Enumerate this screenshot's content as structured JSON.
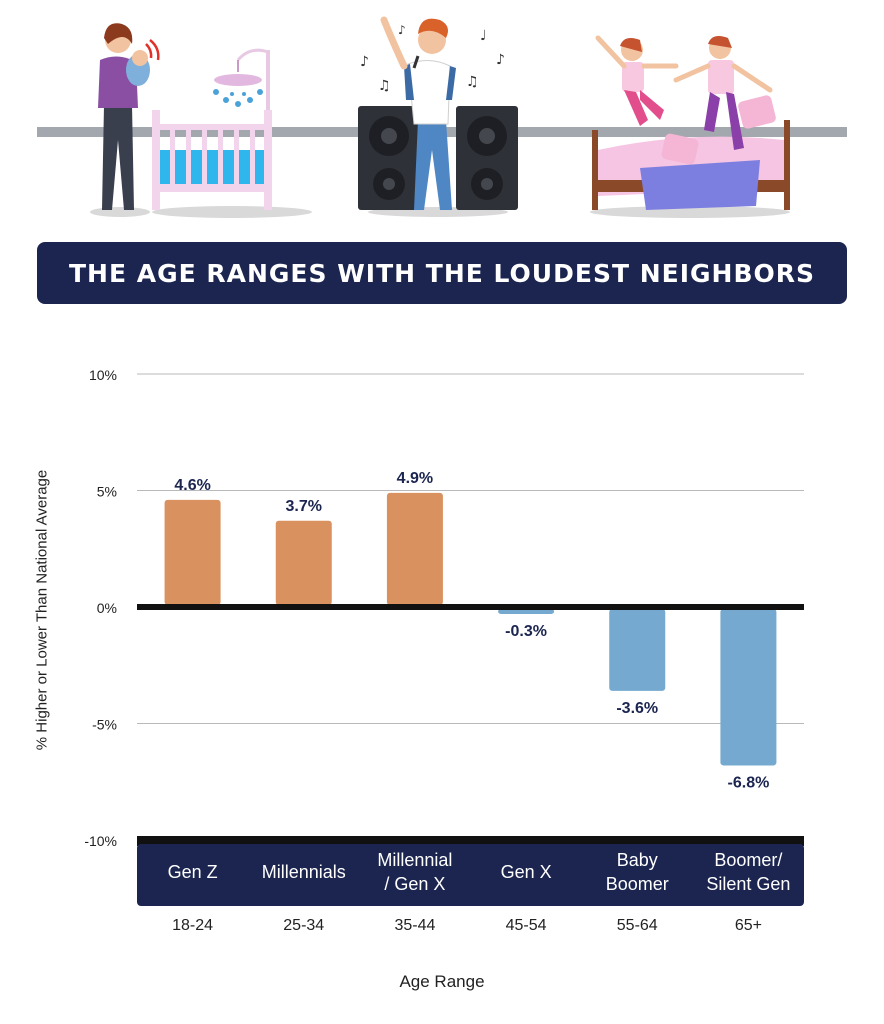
{
  "title": "THE AGE RANGES WITH THE LOUDEST NEIGHBORS",
  "colors": {
    "navy": "#1b2550",
    "positive_bar": "#d99160",
    "negative_bar": "#75a9cf",
    "value_label": "#1b2550"
  },
  "illustration_icons": [
    "mother-with-crying-baby-icon",
    "crib-icon",
    "singer-with-speakers-icon",
    "kids-jumping-on-bed-icon"
  ],
  "chart_data": {
    "type": "bar",
    "title": "THE AGE RANGES WITH THE LOUDEST NEIGHBORS",
    "ylabel": "% Higher or Lower Than National Average",
    "xlabel": "Age Range",
    "ylim": [
      -10,
      10
    ],
    "yticks": [
      10,
      5,
      0,
      -5,
      -10
    ],
    "ytick_labels": [
      "10%",
      "5%",
      "0%",
      "-5%",
      "-10%"
    ],
    "grid": true,
    "categories": [
      "Gen Z",
      "Millennials",
      "Millennial / Gen X",
      "Gen X",
      "Baby Boomer",
      "Boomer/ Silent Gen"
    ],
    "category_lines": [
      [
        "Gen Z"
      ],
      [
        "Millennials"
      ],
      [
        "Millennial",
        "/ Gen X"
      ],
      [
        "Gen X"
      ],
      [
        "Baby",
        "Boomer"
      ],
      [
        "Boomer/",
        "Silent Gen"
      ]
    ],
    "age_ranges": [
      "18-24",
      "25-34",
      "35-44",
      "45-54",
      "55-64",
      "65+"
    ],
    "values": [
      4.6,
      3.7,
      4.9,
      -0.3,
      -3.6,
      -6.8
    ],
    "value_labels": [
      "4.6%",
      "3.7%",
      "4.9%",
      "-0.3%",
      "-3.6%",
      "-6.8%"
    ]
  }
}
